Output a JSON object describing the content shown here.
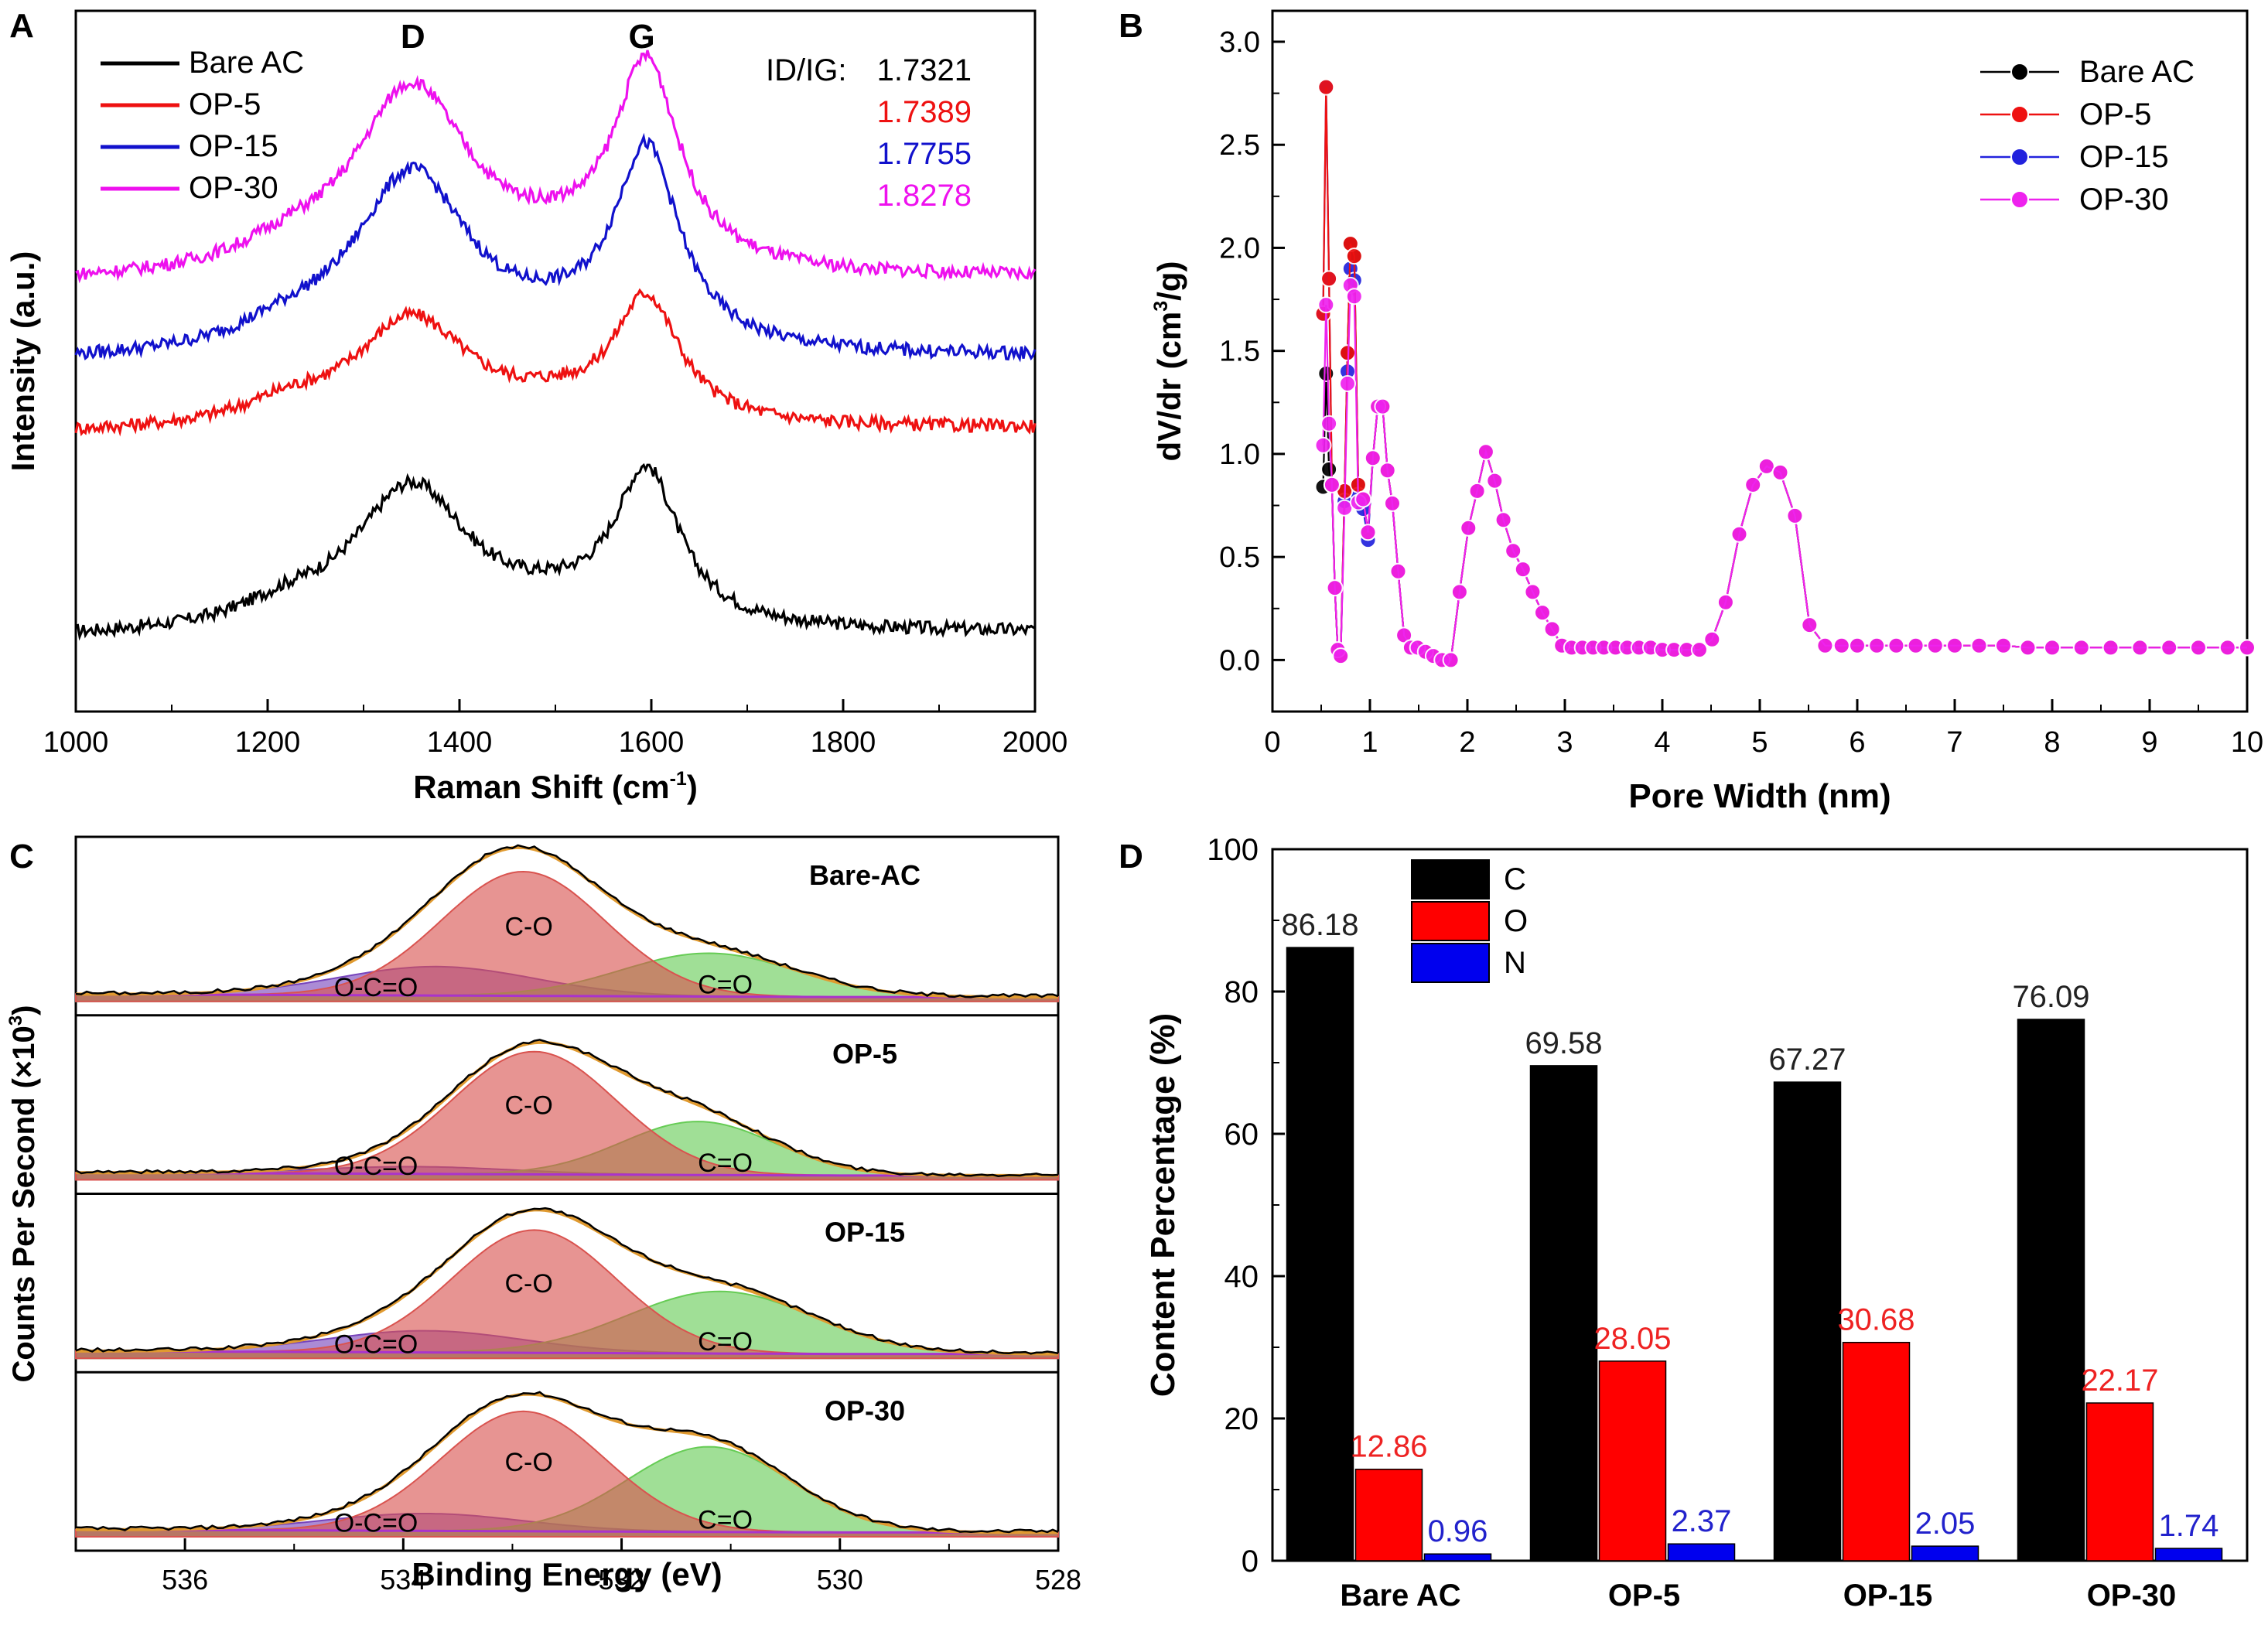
{
  "chart_data": [
    {
      "panel_label": "A",
      "type": "line",
      "title": "",
      "xlabel": "Raman Shift (cm",
      "xlabel_sup": "-1",
      "xlabel_end": ")",
      "ylabel": "Intensity (a.u.)",
      "xlim": [
        1000,
        2000
      ],
      "xticks": [
        "1000",
        "1200",
        "1400",
        "1600",
        "1800",
        "2000"
      ],
      "grid": false,
      "legend_position": "top-left",
      "peak_labels": [
        {
          "text": "D",
          "x": 1345
        },
        {
          "text": "G",
          "x": 1590
        }
      ],
      "ratio_title": "ID/IG:",
      "series": [
        {
          "name": "Bare AC",
          "color": "#000000",
          "ratio": "1.7321",
          "offset": 0.0,
          "baseline": 0.0,
          "d_height": 1.0,
          "g_height": 1.05
        },
        {
          "name": "OP-5",
          "color": "#ee1111",
          "ratio": "1.7389",
          "offset": 1.0,
          "baseline": 0.0,
          "d_height": 0.75,
          "g_height": 0.85
        },
        {
          "name": "OP-15",
          "color": "#1111cc",
          "ratio": "1.7755",
          "offset": 1.45,
          "baseline": 0.0,
          "d_height": 1.25,
          "g_height": 1.35
        },
        {
          "name": "OP-30",
          "color": "#ee11ee",
          "ratio": "1.8278",
          "offset": 1.95,
          "baseline": 0.0,
          "d_height": 1.3,
          "g_height": 1.4
        }
      ]
    },
    {
      "panel_label": "B",
      "type": "line",
      "title": "",
      "xlabel": "Pore Width (nm)",
      "ylabel": "dV/dr (cm",
      "ylabel_sup": "3",
      "ylabel_end": "/g)",
      "xlim": [
        0,
        10
      ],
      "ylim": [
        -0.25,
        3.15
      ],
      "xticks": [
        "0",
        "1",
        "2",
        "3",
        "4",
        "5",
        "6",
        "7",
        "8",
        "9",
        "10"
      ],
      "yticks": [
        "0.0",
        "0.5",
        "1.0",
        "1.5",
        "2.0",
        "2.5",
        "3.0"
      ],
      "grid": false,
      "legend_position": "top-right",
      "series": [
        {
          "name": "Bare AC",
          "color": "#000000"
        },
        {
          "name": "OP-5",
          "color": "#ee1111"
        },
        {
          "name": "OP-15",
          "color": "#2222dd"
        },
        {
          "name": "OP-30",
          "color": "#ee22ee"
        }
      ],
      "x": [
        0.52,
        0.55,
        0.58,
        0.61,
        0.64,
        0.67,
        0.7,
        0.74,
        0.77,
        0.8,
        0.84,
        0.88,
        0.93,
        0.98,
        1.03,
        1.08,
        1.13,
        1.18,
        1.23,
        1.29,
        1.35,
        1.42,
        1.49,
        1.57,
        1.65,
        1.74,
        1.83,
        1.92,
        2.01,
        2.1,
        2.19,
        2.28,
        2.37,
        2.47,
        2.57,
        2.67,
        2.77,
        2.87,
        2.97,
        3.07,
        3.18,
        3.29,
        3.4,
        3.52,
        3.64,
        3.76,
        3.88,
        4.0,
        4.12,
        4.25,
        4.38,
        4.51,
        4.65,
        4.79,
        4.93,
        5.07,
        5.21,
        5.36,
        5.51,
        5.67,
        5.84,
        6.0,
        6.2,
        6.4,
        6.6,
        6.8,
        7.0,
        7.25,
        7.5,
        7.75,
        8.0,
        8.3,
        8.6,
        8.9,
        9.2,
        9.5,
        9.8,
        10.0
      ],
      "y": [
        1.68,
        2.78,
        1.85,
        0.85,
        0.35,
        0.05,
        0.02,
        0.82,
        1.49,
        2.02,
        1.96,
        0.85,
        0.78,
        0.62,
        0.98,
        1.23,
        1.23,
        0.92,
        0.76,
        0.43,
        0.12,
        0.06,
        0.06,
        0.04,
        0.02,
        0.0,
        0.0,
        0.33,
        0.64,
        0.82,
        1.01,
        0.87,
        0.68,
        0.53,
        0.44,
        0.33,
        0.23,
        0.15,
        0.07,
        0.06,
        0.06,
        0.06,
        0.06,
        0.06,
        0.06,
        0.06,
        0.06,
        0.05,
        0.05,
        0.05,
        0.05,
        0.1,
        0.28,
        0.61,
        0.85,
        0.94,
        0.91,
        0.7,
        0.17,
        0.07,
        0.07,
        0.07,
        0.07,
        0.07,
        0.07,
        0.07,
        0.07,
        0.07,
        0.07,
        0.06,
        0.06,
        0.06,
        0.06,
        0.06,
        0.06,
        0.06,
        0.06,
        0.06
      ]
    },
    {
      "panel_label": "C",
      "type": "area",
      "title": "",
      "xlabel": "Binding Energy (eV)",
      "ylabel": "Counts Per Second (×10",
      "ylabel_sup": "3",
      "ylabel_end": ")",
      "xlim": [
        537,
        528
      ],
      "xticks": [
        "536",
        "534",
        "532",
        "530",
        "528"
      ],
      "grid": false,
      "components": [
        "C-O",
        "C=O",
        "O-C=O"
      ],
      "component_colors": {
        "C-O": "#d9534f",
        "C=O": "#66cc55",
        "O-C=O": "#7744bb"
      },
      "subplots": [
        {
          "label": "Bare-AC",
          "peaks": [
            {
              "name": "C-O",
              "center": 532.9,
              "height": 0.86,
              "sigma": 0.75
            },
            {
              "name": "C=O",
              "center": 531.2,
              "height": 0.3,
              "sigma": 0.8
            },
            {
              "name": "O-C=O",
              "center": 533.7,
              "height": 0.2,
              "sigma": 0.9
            }
          ]
        },
        {
          "label": "OP-5",
          "peaks": [
            {
              "name": "C-O",
              "center": 532.8,
              "height": 0.85,
              "sigma": 0.75
            },
            {
              "name": "C=O",
              "center": 531.3,
              "height": 0.37,
              "sigma": 0.7
            },
            {
              "name": "O-C=O",
              "center": 533.9,
              "height": 0.05,
              "sigma": 0.9
            }
          ]
        },
        {
          "label": "OP-15",
          "peaks": [
            {
              "name": "C-O",
              "center": 532.8,
              "height": 0.85,
              "sigma": 0.75
            },
            {
              "name": "C=O",
              "center": 531.1,
              "height": 0.43,
              "sigma": 0.85
            },
            {
              "name": "O-C=O",
              "center": 533.8,
              "height": 0.15,
              "sigma": 0.9
            }
          ]
        },
        {
          "label": "OP-30",
          "peaks": [
            {
              "name": "C-O",
              "center": 532.9,
              "height": 0.83,
              "sigma": 0.75
            },
            {
              "name": "C=O",
              "center": 531.2,
              "height": 0.59,
              "sigma": 0.75
            },
            {
              "name": "O-C=O",
              "center": 533.8,
              "height": 0.12,
              "sigma": 0.9
            }
          ]
        }
      ]
    },
    {
      "panel_label": "D",
      "type": "bar",
      "title": "",
      "xlabel": "",
      "ylabel": "Content Percentage (%)",
      "ylim": [
        0,
        100
      ],
      "yticks": [
        "0",
        "20",
        "40",
        "60",
        "80",
        "100"
      ],
      "grid": false,
      "legend_position": "top-left",
      "categories": [
        "Bare AC",
        "OP-5",
        "OP-15",
        "OP-30"
      ],
      "series": [
        {
          "name": "C",
          "color": "#000000",
          "values": [
            86.18,
            69.58,
            67.27,
            76.09
          ],
          "labels": [
            "86.18",
            "69.58",
            "67.27",
            "76.09"
          ],
          "label_color": "#222222"
        },
        {
          "name": "O",
          "color": "#ff0000",
          "values": [
            12.86,
            28.05,
            30.68,
            22.17
          ],
          "labels": [
            "12.86",
            "28.05",
            "30.68",
            "22.17"
          ],
          "label_color": "#ee2222"
        },
        {
          "name": "N",
          "color": "#0000ee",
          "values": [
            0.96,
            2.37,
            2.05,
            1.74
          ],
          "labels": [
            "0.96",
            "2.37",
            "2.05",
            "1.74"
          ],
          "label_color": "#2222cc"
        }
      ]
    }
  ]
}
